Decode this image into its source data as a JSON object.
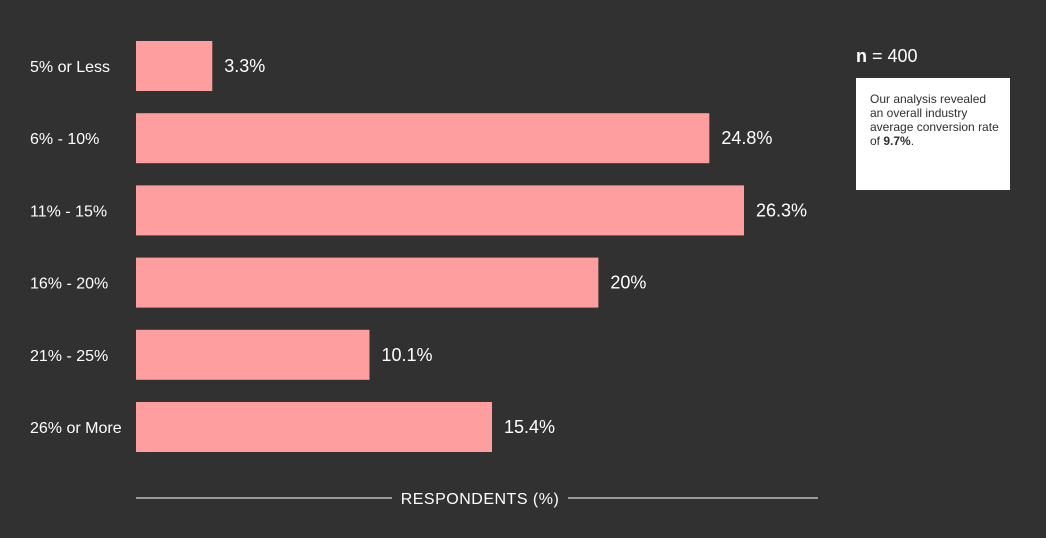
{
  "chart_data": {
    "type": "bar",
    "orientation": "horizontal",
    "categories": [
      "5% or Less",
      "6% - 10%",
      "11% - 15%",
      "16% - 20%",
      "21% - 25%",
      "26% or More"
    ],
    "values": [
      3.3,
      24.8,
      26.3,
      20,
      10.1,
      15.4
    ],
    "value_labels": [
      "3.3%",
      "24.8%",
      "26.3%",
      "20%",
      "10.1%",
      "15.4%"
    ],
    "xlabel": "RESPONDENTS (%)",
    "ylabel": "",
    "xlim": [
      0,
      30
    ],
    "grid": false,
    "bar_color": "#ff9e9e"
  },
  "sample": {
    "n_symbol": "n",
    "n_text": " = 400"
  },
  "note": {
    "text": "Our analysis revealed an overall industry average conversion rate of ",
    "highlight": "9.7%",
    "suffix": "."
  },
  "colors": {
    "background": "#313131",
    "text": "#ffffff",
    "bar": "#ff9e9e",
    "note_bg": "#ffffff"
  }
}
